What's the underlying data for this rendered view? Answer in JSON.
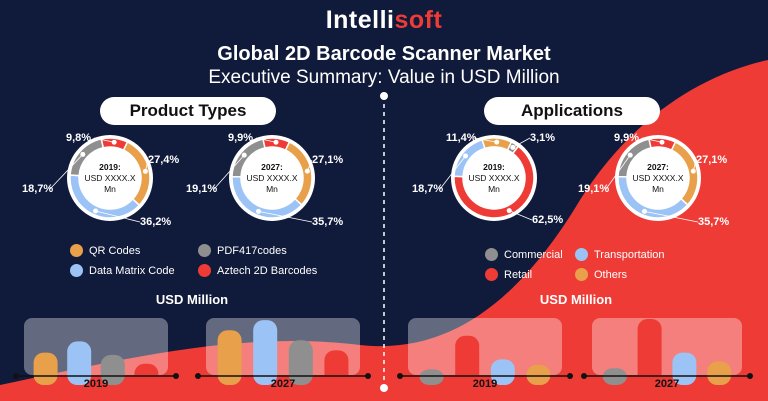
{
  "header": {
    "logo_a": "Intelli",
    "logo_b": "soft",
    "title": "Global 2D Barcode Scanner Market",
    "subtitle": "Executive Summary: Value in USD Million"
  },
  "colors": {
    "orange": "#e8a04a",
    "gray": "#8f8f8f",
    "blue": "#9cc3f5",
    "red": "#ef3b36",
    "navy": "#101a3a"
  },
  "product_types": {
    "heading": "Product Types",
    "legend": [
      {
        "label": "QR Codes",
        "color": "#e8a04a"
      },
      {
        "label": "PDF417codes",
        "color": "#8f8f8f"
      },
      {
        "label": "Data Matrix Code",
        "color": "#9cc3f5"
      },
      {
        "label": "Aztech 2D Barcodes",
        "color": "#ef3b36"
      }
    ],
    "usd_label": "USD Million"
  },
  "applications": {
    "heading": "Applications",
    "legend": [
      {
        "label": "Commercial",
        "color": "#8f8f8f"
      },
      {
        "label": "Transportation",
        "color": "#9cc3f5"
      },
      {
        "label": "Retail",
        "color": "#ef3b36"
      },
      {
        "label": "Others",
        "color": "#e8a04a"
      }
    ],
    "usd_label": "USD Million"
  },
  "chart_data": [
    {
      "type": "pie",
      "id": "pt2019",
      "center_year": "2019:",
      "center_value": "USD XXXX.X",
      "center_unit": "Mn",
      "slices": [
        {
          "name": "QR Codes",
          "value": 27.4,
          "label": "27,4%"
        },
        {
          "name": "Data Matrix Code",
          "value": 36.2,
          "label": "36,2%"
        },
        {
          "name": "PDF417codes",
          "value": 18.7,
          "label": "18,7%"
        },
        {
          "name": "Aztech 2D Barcodes",
          "value": 9.8,
          "label": "9,8%"
        }
      ]
    },
    {
      "type": "pie",
      "id": "pt2027",
      "center_year": "2027:",
      "center_value": "USD XXXX.X",
      "center_unit": "Mn",
      "slices": [
        {
          "name": "QR Codes",
          "value": 27.1,
          "label": "27,1%"
        },
        {
          "name": "Data Matrix Code",
          "value": 35.7,
          "label": "35,7%"
        },
        {
          "name": "PDF417codes",
          "value": 19.1,
          "label": "19,1%"
        },
        {
          "name": "Aztech 2D Barcodes",
          "value": 9.9,
          "label": "9,9%"
        }
      ]
    },
    {
      "type": "pie",
      "id": "ap2019",
      "center_year": "2019:",
      "center_value": "USD XXXX.X",
      "center_unit": "Mn",
      "slices": [
        {
          "name": "Commercial",
          "value": 3.1,
          "label": "3,1%"
        },
        {
          "name": "Retail",
          "value": 62.5,
          "label": "62,5%"
        },
        {
          "name": "Transportation",
          "value": 18.7,
          "label": "18,7%"
        },
        {
          "name": "Others",
          "value": 11.4,
          "label": "11,4%"
        }
      ]
    },
    {
      "type": "pie",
      "id": "ap2027",
      "center_year": "2027:",
      "center_value": "USD XXXX.X",
      "center_unit": "Mn",
      "slices": [
        {
          "name": "Others",
          "value": 27.1,
          "label": "27,1%"
        },
        {
          "name": "Transportation",
          "value": 35.7,
          "label": "35,7%"
        },
        {
          "name": "Commercial",
          "value": 19.1,
          "label": "19,1%"
        },
        {
          "name": "Retail",
          "value": 9.9,
          "label": "9,9%"
        }
      ]
    },
    {
      "type": "bar",
      "id": "ptbars",
      "title": "USD Million",
      "categories": [
        "2019",
        "2027"
      ],
      "series": [
        {
          "name": "QR Codes",
          "values": [
            20,
            40
          ]
        },
        {
          "name": "Data Matrix Code",
          "values": [
            30,
            49
          ]
        },
        {
          "name": "PDF417codes",
          "values": [
            18,
            31
          ]
        },
        {
          "name": "Aztech 2D Barcodes",
          "values": [
            10,
            22
          ]
        }
      ]
    },
    {
      "type": "bar",
      "id": "apbars",
      "title": "USD Million",
      "categories": [
        "2019",
        "2027"
      ],
      "series": [
        {
          "name": "Commercial",
          "values": [
            5,
            6
          ]
        },
        {
          "name": "Retail",
          "values": [
            35,
            50
          ]
        },
        {
          "name": "Transportation",
          "values": [
            14,
            20
          ]
        },
        {
          "name": "Others",
          "values": [
            9,
            12
          ]
        }
      ]
    }
  ]
}
